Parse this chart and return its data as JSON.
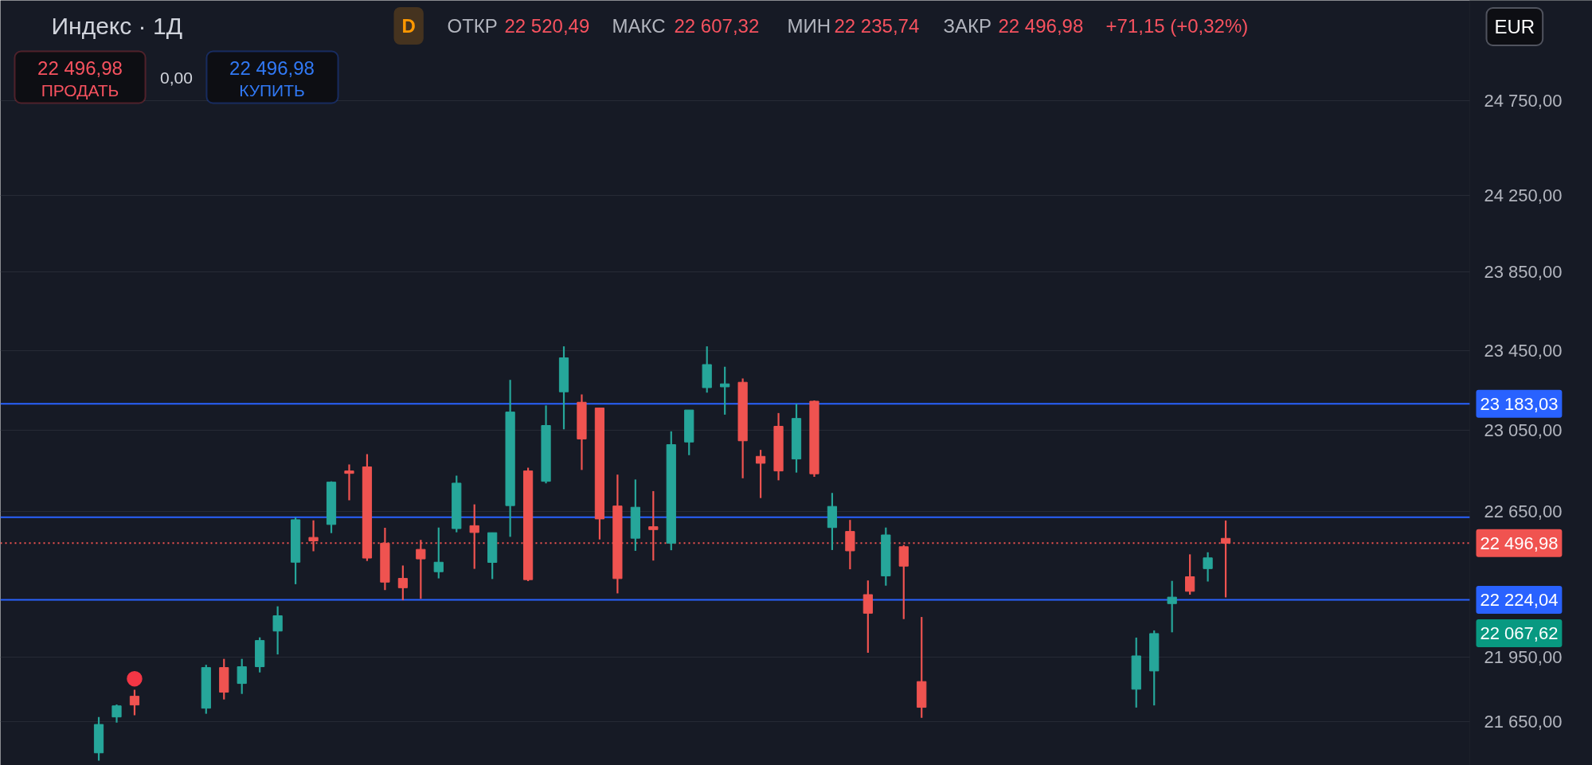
{
  "chart_data": {
    "type": "candlestick",
    "title": "Индекс · 1Д",
    "categories": [
      null,
      null,
      null,
      null,
      null,
      null,
      null,
      null,
      null,
      null,
      null,
      null,
      null,
      null,
      null,
      null,
      null,
      null,
      null,
      null,
      null,
      null,
      null,
      null,
      null,
      null,
      null,
      null,
      null,
      null,
      null,
      null,
      null,
      null,
      null,
      null,
      null,
      null,
      null,
      null,
      null,
      null,
      null,
      null,
      null,
      null,
      null,
      null,
      null,
      null,
      null,
      null,
      null,
      null,
      null,
      null,
      null,
      null,
      null,
      null,
      null,
      null,
      null,
      null,
      null,
      null,
      null,
      null,
      null,
      null,
      null,
      null,
      null,
      null,
      null,
      null,
      null,
      null,
      null,
      null,
      null,
      null,
      null,
      null,
      null,
      null,
      null,
      null,
      null
    ],
    "ohlc": [
      null,
      null,
      null,
      null,
      null,
      [
        21503,
        21670,
        21467,
        21635
      ],
      [
        21670,
        21728,
        21644,
        21722
      ],
      [
        21767,
        21797,
        21678,
        21726
      ],
      null,
      null,
      null,
      [
        21711,
        21915,
        21685,
        21902
      ],
      [
        21902,
        21943,
        21752,
        21786
      ],
      [
        21827,
        21943,
        21778,
        21906
      ],
      [
        21906,
        22045,
        21879,
        22030
      ],
      [
        22075,
        22193,
        21964,
        22148
      ],
      [
        22405,
        22623,
        22299,
        22611
      ],
      [
        22525,
        22608,
        22458,
        22508
      ],
      [
        22588,
        22799,
        22546,
        22795
      ],
      [
        22850,
        22882,
        22706,
        22838
      ],
      [
        22870,
        22933,
        22411,
        22425
      ],
      [
        22497,
        22572,
        22271,
        22309
      ],
      [
        22327,
        22389,
        22222,
        22282
      ],
      [
        22467,
        22513,
        22229,
        22421
      ],
      [
        22359,
        22573,
        22327,
        22405
      ],
      [
        22568,
        22827,
        22550,
        22790
      ],
      [
        22582,
        22686,
        22373,
        22549
      ],
      [
        22404,
        22548,
        22324,
        22548
      ],
      [
        22680,
        23303,
        22528,
        23142
      ],
      [
        22850,
        22866,
        22314,
        22321
      ],
      [
        22799,
        23175,
        22789,
        23075
      ],
      [
        23243,
        23472,
        23056,
        23414
      ],
      [
        23191,
        23230,
        22855,
        23008
      ],
      [
        23162,
        23162,
        22515,
        22615
      ],
      [
        22678,
        22832,
        22255,
        22326
      ],
      [
        22521,
        22808,
        22460,
        22672
      ],
      [
        22577,
        22751,
        22413,
        22563
      ],
      [
        22497,
        23046,
        22463,
        22980
      ],
      [
        22993,
        23152,
        22928,
        23152
      ],
      [
        23264,
        23472,
        23239,
        23380
      ],
      [
        23268,
        23369,
        23129,
        23283
      ],
      [
        23291,
        23310,
        22814,
        22999
      ],
      [
        22922,
        22954,
        22717,
        22888
      ],
      [
        23071,
        23137,
        22804,
        22850
      ],
      [
        22909,
        23183,
        22842,
        23110
      ],
      [
        23196,
        23200,
        22821,
        22836
      ],
      [
        22573,
        22742,
        22464,
        22676
      ],
      [
        22554,
        22610,
        22371,
        22460
      ],
      [
        22249,
        22317,
        21972,
        22160
      ],
      [
        22339,
        22573,
        22292,
        22537
      ],
      [
        22480,
        22488,
        22132,
        22386
      ],
      [
        21836,
        22142,
        21666,
        21715
      ],
      null,
      null,
      null,
      null,
      null,
      null,
      null,
      null,
      null,
      null,
      null,
      [
        21800,
        22044,
        21714,
        21957
      ],
      [
        21886,
        22078,
        21724,
        22063
      ],
      [
        22206,
        22315,
        22069,
        22237
      ],
      [
        22335,
        22443,
        22249,
        22265
      ],
      [
        22374,
        22453,
        22312,
        22426
      ],
      [
        22520.49,
        22607.32,
        22235.74,
        22496.98
      ],
      null,
      null,
      null,
      null,
      null,
      null,
      null,
      null,
      null,
      null,
      null,
      null,
      null,
      null,
      null,
      null,
      null,
      null,
      null,
      null
    ],
    "colors": [
      null,
      null,
      null,
      null,
      null,
      "#26a69a",
      "#26a69a",
      "#ef5350",
      null,
      null,
      null,
      "#26a69a",
      "#ef5350",
      "#26a69a",
      "#26a69a",
      "#26a69a",
      "#26a69a",
      "#ef5350",
      "#26a69a",
      "#ef5350",
      "#ef5350",
      "#ef5350",
      "#ef5350",
      "#ef5350",
      "#26a69a",
      "#26a69a",
      "#ef5350",
      "#26a69a",
      "#26a69a",
      "#ef5350",
      "#26a69a",
      "#26a69a",
      "#ef5350",
      "#ef5350",
      "#ef5350",
      "#26a69a",
      "#ef5350",
      "#26a69a",
      "#26a69a",
      "#26a69a",
      "#26a69a",
      "#ef5350",
      "#ef5350",
      "#ef5350",
      "#26a69a",
      "#ef5350",
      "#26a69a",
      "#ef5350",
      "#ef5350",
      "#26a69a",
      "#ef5350",
      "#ef5350",
      null,
      null,
      null,
      null,
      null,
      null,
      null,
      null,
      null,
      null,
      null,
      "#26a69a",
      "#26a69a",
      "#26a69a",
      "#ef5350",
      "#26a69a",
      "#ef5350",
      null,
      null,
      null,
      null,
      null,
      null,
      null,
      null,
      null,
      null,
      null,
      null,
      null,
      null,
      null,
      null,
      null,
      null,
      null,
      null
    ],
    "series": [
      {
        "type": "scatter",
        "color": "#f23645",
        "values": [
          null,
          null,
          null,
          null,
          null,
          null,
          null,
          21849,
          null,
          null,
          null,
          null,
          null,
          null,
          null,
          null,
          null,
          null,
          null,
          null,
          null,
          null,
          null,
          null,
          null,
          null,
          null,
          null,
          null,
          null,
          null,
          null,
          null,
          null,
          null,
          null,
          null,
          null,
          null,
          null,
          null,
          null,
          null,
          null,
          null,
          null,
          null,
          null,
          null,
          null,
          null,
          null,
          null,
          null,
          null,
          null,
          null,
          null,
          null,
          null,
          null,
          null,
          null,
          null,
          null,
          null,
          null,
          null,
          null,
          null,
          null,
          null,
          null,
          null,
          null,
          null,
          null,
          null,
          null,
          null,
          null,
          null,
          null,
          null,
          null,
          null,
          null,
          null,
          null
        ]
      }
    ],
    "marker": "circle",
    "log": true,
    "ylim": [
      21445,
      25289
    ],
    "yticks": [
      {
        "value": 21650,
        "label": "21 650,00"
      },
      {
        "value": 21950,
        "label": "21 950,00"
      },
      {
        "value": 22650,
        "label": "22 650,00"
      },
      {
        "value": 23050,
        "label": "23 050,00"
      },
      {
        "value": 23450,
        "label": "23 450,00"
      },
      {
        "value": 23850,
        "label": "23 850,00"
      },
      {
        "value": 24250,
        "label": "24 250,00"
      },
      {
        "value": 24750,
        "label": "24 750,00"
      }
    ],
    "grid": "y",
    "tick_labels": "y",
    "ref_lines": [
      {
        "axis": "y",
        "value": 23183.03,
        "label": "23 183,03",
        "color": "#2962ff",
        "line_style": "solid"
      },
      {
        "axis": "y",
        "value": 22623,
        "label": null,
        "color": "#2962ff",
        "line_style": "solid"
      },
      {
        "axis": "y",
        "value": 22224.04,
        "label": "22 224,04",
        "color": "#2962ff",
        "line_style": "solid"
      },
      {
        "axis": "y",
        "value": 22496.98,
        "label": "22 496,98",
        "color": "#f05350",
        "line_style": "dotted"
      }
    ],
    "annotations": [
      "D",
      "ОТКР",
      "22 520,49",
      "МАКС",
      "22 607,32",
      "МИН",
      "22 235,74",
      "ЗАКР",
      "22 496,98",
      "+71,15 (+0,32%)",
      "EUR",
      "22 496,98",
      "ПРОДАТЬ",
      "0,00",
      "22 496,98",
      "КУПИТЬ",
      "22 067,62"
    ]
  }
}
